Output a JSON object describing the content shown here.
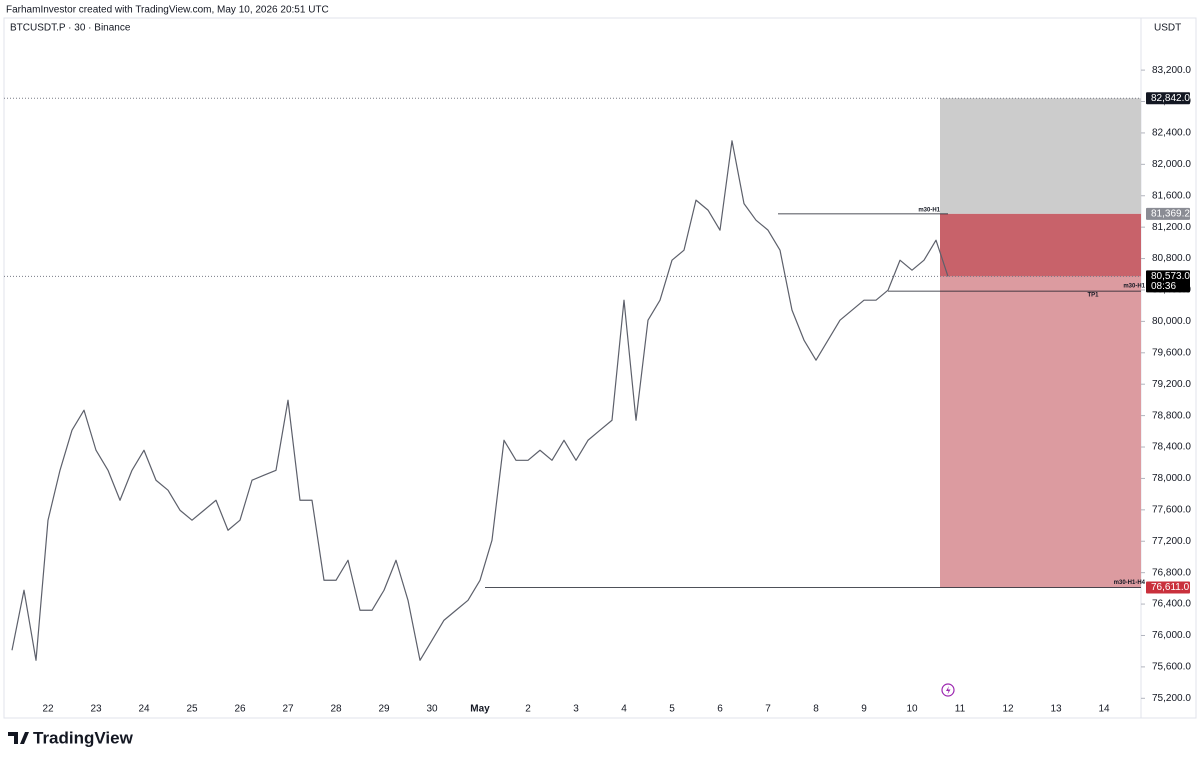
{
  "chart_data": {
    "type": "line",
    "header_text": "FarhamInvestor created with TradingView.com, May 10, 2026 20:51 UTC",
    "symbol": "BTCUSDT.P · 30 · Binance",
    "currency": "USDT",
    "brand": "TradingView",
    "categories": [
      null,
      null,
      null,
      "22",
      null,
      null,
      null,
      "23",
      null,
      null,
      null,
      "24",
      null,
      null,
      null,
      "25",
      null,
      null,
      null,
      "26",
      null,
      null,
      null,
      "27",
      null,
      null,
      null,
      "28",
      null,
      null,
      null,
      "29",
      null,
      null,
      null,
      "30",
      null,
      null,
      null,
      "May",
      null,
      null,
      null,
      "2",
      null,
      null,
      null,
      "3",
      null,
      null,
      null,
      "4",
      null,
      null,
      null,
      "5",
      null,
      null,
      null,
      "6",
      null,
      null,
      null,
      "7",
      null,
      null,
      null,
      "8",
      null,
      null,
      null,
      "9",
      null,
      null,
      null,
      "10",
      null,
      null,
      null,
      "11",
      null,
      null,
      null,
      "12",
      null,
      null,
      null,
      "13",
      null,
      null,
      null,
      "14",
      null,
      null,
      null
    ],
    "values": [
      75812,
      76576,
      75684,
      77468,
      78104,
      78614,
      78869,
      78359,
      78104,
      77722,
      78104,
      78359,
      77977,
      77850,
      77595,
      77468,
      77595,
      77722,
      77340,
      77468,
      77977,
      78041,
      78104,
      78996,
      77722,
      77722,
      76703,
      76703,
      76958,
      76321,
      76321,
      76576,
      76958,
      76448,
      75684,
      75939,
      76194,
      76321,
      76448,
      76703,
      77213,
      78486,
      78231,
      78231,
      78359,
      78231,
      78486,
      78231,
      78486,
      78614,
      78741,
      80270,
      78741,
      80015,
      80270,
      80779,
      80907,
      81544,
      81417,
      81162,
      82300,
      81500,
      81289,
      81162,
      80907,
      80143,
      79761,
      79506,
      79761,
      80015,
      80143,
      80270,
      80270,
      80397,
      80779,
      80652,
      80779,
      81034,
      80573,
      null,
      null,
      null,
      null,
      null,
      null,
      null,
      null,
      null,
      null,
      null,
      null,
      null,
      null,
      null,
      null
    ],
    "color": "#5d606b",
    "ylim": [
      75000,
      83800
    ],
    "yticks": [
      {
        "value": 75200,
        "label": "75,200.0"
      },
      {
        "value": 75600,
        "label": "75,600.0"
      },
      {
        "value": 76000,
        "label": "76,000.0"
      },
      {
        "value": 76400,
        "label": "76,400.0"
      },
      {
        "value": 76800,
        "label": "76,800.0"
      },
      {
        "value": 77200,
        "label": "77,200.0"
      },
      {
        "value": 77600,
        "label": "77,600.0"
      },
      {
        "value": 78000,
        "label": "78,000.0"
      },
      {
        "value": 78400,
        "label": "78,400.0"
      },
      {
        "value": 78800,
        "label": "78,800.0"
      },
      {
        "value": 79200,
        "label": "79,200.0"
      },
      {
        "value": 79600,
        "label": "79,600.0"
      },
      {
        "value": 80000,
        "label": "80,000.0"
      },
      {
        "value": 80400,
        "label": "80,400.0"
      },
      {
        "value": 80800,
        "label": "80,800.0"
      },
      {
        "value": 81200,
        "label": "81,200.0"
      },
      {
        "value": 81600,
        "label": "81,600.0"
      },
      {
        "value": 82000,
        "label": "82,000.0"
      },
      {
        "value": 82400,
        "label": "82,400.0"
      },
      {
        "value": 82800,
        "label": "82,800.0"
      },
      {
        "value": 83200,
        "label": "83,200.0"
      }
    ],
    "grid": false,
    "price_labels": [
      {
        "value": 82842,
        "label": "82,842.0",
        "color": "#131722"
      },
      {
        "value": 81369.2,
        "label": "81,369.2",
        "color": "#8a8c94"
      },
      {
        "value": 80573,
        "label": "80,573.0",
        "color": "#000000"
      },
      {
        "value": 76611,
        "label": "76,611.0",
        "color": "#c9303c"
      }
    ],
    "countdown": "08:36",
    "zone_colors": [
      "#cccccc",
      "#c8626a",
      "#dc9ba0"
    ],
    "annotations": [
      {
        "text": "m30-H1",
        "value": 81369.2
      },
      {
        "text": "m30-H1",
        "value": 80385
      },
      {
        "text": "TP1",
        "value": 80385
      },
      {
        "text": "m30-H1-H4",
        "value": 76611
      }
    ]
  }
}
